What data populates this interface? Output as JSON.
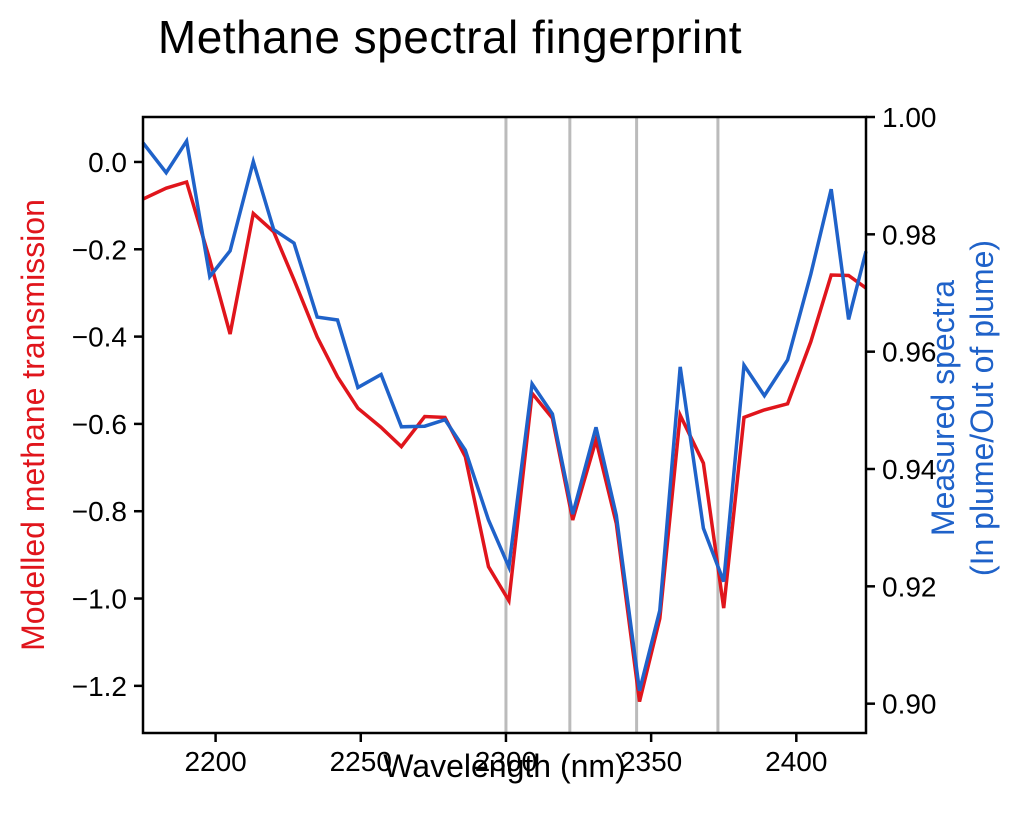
{
  "figure": {
    "title": "Methane spectral fingerprint",
    "background_color": "#ffffff"
  },
  "chart_data": {
    "type": "line",
    "title": "Methane spectral fingerprint",
    "xlabel": "Wavelength (nm)",
    "ylabel_left": "Modelled methane transmission",
    "ylabel_right_line1": "Measured spectra",
    "ylabel_right_line2": "(In plume/Out of plume)",
    "xlim": [
      2175,
      2424
    ],
    "ylim_left": [
      -1.308,
      0.103
    ],
    "ylim_right": [
      0.895,
      1.0
    ],
    "xticks": [
      2200,
      2250,
      2300,
      2350,
      2400
    ],
    "xtick_labels": [
      "2200",
      "2250",
      "2300",
      "2350",
      "2400"
    ],
    "yticks_left_values": [
      0.0,
      -0.2,
      -0.4,
      -0.6,
      -0.8,
      -1.0,
      -1.2
    ],
    "yticks_left_labels": [
      "0.0",
      "−0.2",
      "−0.4",
      "−0.6",
      "−0.8",
      "−1.0",
      "−1.2"
    ],
    "yticks_right_values": [
      1.0,
      0.98,
      0.96,
      0.94,
      0.92,
      0.9
    ],
    "yticks_right_labels": [
      "1.00",
      "0.98",
      "0.96",
      "0.94",
      "0.92",
      "0.90"
    ],
    "absorption_lines_nm": [
      2300,
      2322,
      2345,
      2373
    ],
    "grid": "off",
    "legend_position": "none",
    "x_wavelength_nm": [
      2175,
      2183,
      2190,
      2198,
      2205,
      2213,
      2220,
      2227,
      2235,
      2242,
      2249,
      2257,
      2264,
      2272,
      2279,
      2286,
      2294,
      2301,
      2309,
      2316,
      2323,
      2331,
      2338,
      2346,
      2353,
      2360,
      2368,
      2375,
      2382,
      2389,
      2397,
      2405,
      2412,
      2418,
      2424
    ],
    "series": [
      {
        "name": "Modelled methane transmission",
        "axis": "left",
        "color": "#e0151c",
        "values": [
          -0.085,
          -0.06,
          -0.046,
          -0.224,
          -0.394,
          -0.118,
          -0.16,
          -0.27,
          -0.401,
          -0.492,
          -0.564,
          -0.608,
          -0.652,
          -0.583,
          -0.585,
          -0.675,
          -0.927,
          -1.005,
          -0.53,
          -0.587,
          -0.82,
          -0.637,
          -0.828,
          -1.236,
          -1.046,
          -0.58,
          -0.69,
          -1.022,
          -0.585,
          -0.568,
          -0.554,
          -0.412,
          -0.259,
          -0.26,
          -0.289
        ]
      },
      {
        "name": "Measured spectra (In plume/Out of plume)",
        "axis": "right",
        "color": "#1f62c9",
        "values": [
          0.9956,
          0.9905,
          0.9959,
          0.9728,
          0.9772,
          0.9924,
          0.9808,
          0.9785,
          0.9659,
          0.9654,
          0.9539,
          0.9561,
          0.9472,
          0.9473,
          0.9484,
          0.9432,
          0.9313,
          0.9233,
          0.9545,
          0.9494,
          0.9323,
          0.9471,
          0.9321,
          0.9022,
          0.9159,
          0.9574,
          0.9299,
          0.9208,
          0.9577,
          0.9525,
          0.9586,
          0.9732,
          0.9877,
          0.9655,
          0.9771
        ]
      }
    ],
    "absorption_line_color": "#bbbbbb",
    "spine_color": "#000000",
    "tick_label_color": "#000000"
  }
}
